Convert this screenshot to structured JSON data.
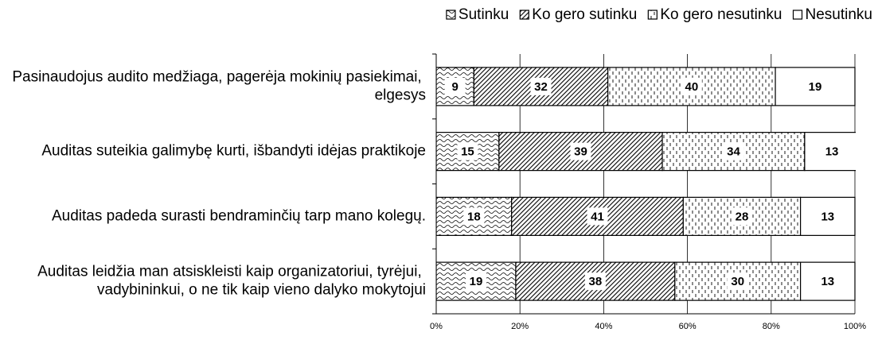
{
  "chart_data": {
    "type": "stacked_barh",
    "categories": [
      "Pasinaudojus audito medžiaga, pagerėja mokinių pasiekimai, elgesys",
      "Auditas suteikia galimybę kurti, išbandyti idėjas praktikoje",
      "Auditas padeda surasti bendraminčių tarp mano kolegų.",
      "Auditas leidžia man atsiskleisti kaip organizatoriui, tyrėjui, vadybininkui, o ne tik kaip vieno dalyko mokytojui"
    ],
    "series": [
      {
        "name": "Sutinku",
        "color": "#000000",
        "pattern": "waves",
        "values": [
          9,
          15,
          18,
          19
        ]
      },
      {
        "name": "Ko gero sutinku",
        "color": "#000000",
        "pattern": "diagonal",
        "values": [
          32,
          39,
          41,
          38
        ]
      },
      {
        "name": "Ko gero nesutinku",
        "color": "#000000",
        "pattern": "dashes",
        "values": [
          40,
          34,
          28,
          30
        ]
      },
      {
        "name": "Nesutinku",
        "color": "#000000",
        "pattern": "none",
        "values": [
          19,
          13,
          13,
          13
        ]
      }
    ],
    "xlim": [
      0,
      100
    ],
    "xticks": [
      {
        "value": 0,
        "label": "0%"
      },
      {
        "value": 20,
        "label": "20%"
      },
      {
        "value": 40,
        "label": "40%"
      },
      {
        "value": 60,
        "label": "60%"
      },
      {
        "value": 80,
        "label": "80%"
      },
      {
        "value": 100,
        "label": "100%"
      }
    ],
    "grid": true,
    "legend": "top-right"
  }
}
